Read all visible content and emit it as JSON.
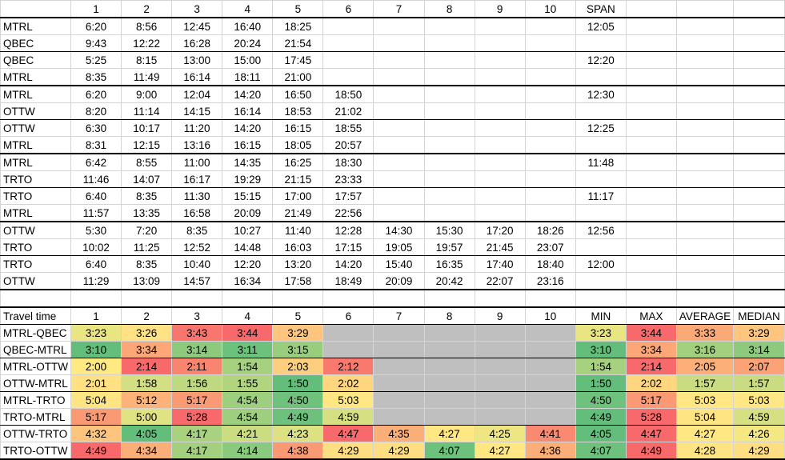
{
  "header": [
    "",
    "1",
    "2",
    "3",
    "4",
    "5",
    "6",
    "7",
    "8",
    "9",
    "10",
    "SPAN",
    "",
    "",
    ""
  ],
  "schedule": [
    {
      "span": "12:05",
      "rows": [
        {
          "station": "MTRL",
          "times": [
            "6:20",
            "8:56",
            "12:45",
            "16:40",
            "18:25"
          ]
        },
        {
          "station": "QBEC",
          "times": [
            "9:43",
            "12:22",
            "16:28",
            "20:24",
            "21:54"
          ]
        }
      ]
    },
    {
      "span": "12:20",
      "rows": [
        {
          "station": "QBEC",
          "times": [
            "5:25",
            "8:15",
            "13:00",
            "15:00",
            "17:45"
          ]
        },
        {
          "station": "MTRL",
          "times": [
            "8:35",
            "11:49",
            "16:14",
            "18:11",
            "21:00"
          ]
        }
      ]
    },
    {
      "span": "12:30",
      "rows": [
        {
          "station": "MTRL",
          "times": [
            "6:20",
            "9:00",
            "12:04",
            "14:20",
            "16:50",
            "18:50"
          ]
        },
        {
          "station": "OTTW",
          "times": [
            "8:20",
            "11:14",
            "14:15",
            "16:14",
            "18:53",
            "21:02"
          ]
        }
      ]
    },
    {
      "span": "12:25",
      "rows": [
        {
          "station": "OTTW",
          "times": [
            "6:30",
            "10:17",
            "11:20",
            "14:20",
            "16:15",
            "18:55"
          ]
        },
        {
          "station": "MTRL",
          "times": [
            "8:31",
            "12:15",
            "13:16",
            "16:15",
            "18:05",
            "20:57"
          ]
        }
      ]
    },
    {
      "span": "11:48",
      "rows": [
        {
          "station": "MTRL",
          "times": [
            "6:42",
            "8:55",
            "11:00",
            "14:35",
            "16:25",
            "18:30"
          ]
        },
        {
          "station": "TRTO",
          "times": [
            "11:46",
            "14:07",
            "16:17",
            "19:29",
            "21:15",
            "23:33"
          ]
        }
      ]
    },
    {
      "span": "11:17",
      "rows": [
        {
          "station": "TRTO",
          "times": [
            "6:40",
            "8:35",
            "11:30",
            "15:15",
            "17:00",
            "17:57"
          ]
        },
        {
          "station": "MTRL",
          "times": [
            "11:57",
            "13:35",
            "16:58",
            "20:09",
            "21:49",
            "22:56"
          ]
        }
      ]
    },
    {
      "span": "12:56",
      "rows": [
        {
          "station": "OTTW",
          "times": [
            "5:30",
            "7:20",
            "8:35",
            "10:27",
            "11:40",
            "12:28",
            "14:30",
            "15:30",
            "17:20",
            "18:26"
          ]
        },
        {
          "station": "TRTO",
          "times": [
            "10:02",
            "11:25",
            "12:52",
            "14:48",
            "16:03",
            "17:15",
            "19:05",
            "19:57",
            "21:45",
            "23:07"
          ]
        }
      ]
    },
    {
      "span": "12:00",
      "rows": [
        {
          "station": "TRTO",
          "times": [
            "6:40",
            "8:35",
            "10:40",
            "12:20",
            "13:20",
            "14:20",
            "15:40",
            "16:35",
            "17:40",
            "18:40"
          ]
        },
        {
          "station": "OTTW",
          "times": [
            "11:29",
            "13:09",
            "14:57",
            "16:34",
            "17:58",
            "18:49",
            "20:09",
            "20:42",
            "22:07",
            "23:16"
          ]
        }
      ]
    }
  ],
  "travel": {
    "header": [
      "Travel time",
      "1",
      "2",
      "3",
      "4",
      "5",
      "6",
      "7",
      "8",
      "9",
      "10",
      "MIN",
      "MAX",
      "AVERAGE",
      "MEDIAN"
    ],
    "no_data_color": "#BFBFBF",
    "rows": [
      {
        "route": "MTRL-QBEC",
        "cells": [
          [
            "3:23",
            "#E9E583"
          ],
          [
            "3:26",
            "#FEE283"
          ],
          [
            "3:43",
            "#F8766D"
          ],
          [
            "3:44",
            "#F8696B"
          ],
          [
            "3:29",
            "#FDC57D"
          ],
          null,
          null,
          null,
          null,
          null
        ],
        "stats": [
          [
            "3:23",
            "#E9E583"
          ],
          [
            "3:44",
            "#F8696B"
          ],
          [
            "3:33",
            "#FBA977"
          ],
          [
            "3:29",
            "#FDC57D"
          ]
        ]
      },
      {
        "route": "QBEC-MTRL",
        "cells": [
          [
            "3:10",
            "#63BE7B"
          ],
          [
            "3:34",
            "#FBA777"
          ],
          [
            "3:14",
            "#8DCA7E"
          ],
          [
            "3:11",
            "#6CC17C"
          ],
          [
            "3:15",
            "#98CD7E"
          ],
          null,
          null,
          null,
          null,
          null
        ],
        "stats": [
          [
            "3:10",
            "#63BE7B"
          ],
          [
            "3:34",
            "#FBA777"
          ],
          [
            "3:16",
            "#A2D07F"
          ],
          [
            "3:14",
            "#8DCA7E"
          ]
        ]
      },
      {
        "route": "MTRL-OTTW",
        "cells": [
          [
            "2:00",
            "#FEE983"
          ],
          [
            "2:14",
            "#F8696B"
          ],
          [
            "2:11",
            "#F98570"
          ],
          [
            "1:54",
            "#A6D17F"
          ],
          [
            "2:03",
            "#FECE7F"
          ],
          [
            "2:12",
            "#F9796E"
          ],
          null,
          null,
          null,
          null
        ],
        "stats": [
          [
            "1:54",
            "#A6D17F"
          ],
          [
            "2:14",
            "#F8696B"
          ],
          [
            "2:05",
            "#FCAF78"
          ],
          [
            "2:07",
            "#FBA276"
          ]
        ]
      },
      {
        "route": "OTTW-MTRL",
        "cells": [
          [
            "2:01",
            "#FFE083"
          ],
          [
            "1:58",
            "#D3DF82"
          ],
          [
            "1:56",
            "#BFD980"
          ],
          [
            "1:55",
            "#B1D57F"
          ],
          [
            "1:50",
            "#63BE7B"
          ],
          [
            "2:02",
            "#FED680"
          ],
          null,
          null,
          null,
          null
        ],
        "stats": [
          [
            "1:50",
            "#63BE7B"
          ],
          [
            "2:02",
            "#FED680"
          ],
          [
            "1:57",
            "#C9DC81"
          ],
          [
            "1:57",
            "#C9DC81"
          ]
        ]
      },
      {
        "route": "MTRL-TRTO",
        "cells": [
          [
            "5:04",
            "#FFE483"
          ],
          [
            "5:12",
            "#FCB279"
          ],
          [
            "5:17",
            "#FA9A74"
          ],
          [
            "4:54",
            "#9DCF7E"
          ],
          [
            "4:50",
            "#6FC27C"
          ],
          [
            "5:03",
            "#FFE884"
          ],
          null,
          null,
          null,
          null
        ],
        "stats": [
          [
            "4:50",
            "#6FC27C"
          ],
          [
            "5:17",
            "#FA9A74"
          ],
          [
            "5:03",
            "#FFE884"
          ],
          [
            "5:03",
            "#FFE884"
          ]
        ]
      },
      {
        "route": "TRTO-MTRL",
        "cells": [
          [
            "5:17",
            "#FA9A74"
          ],
          [
            "5:00",
            "#E0E383"
          ],
          [
            "5:28",
            "#F8696B"
          ],
          [
            "4:54",
            "#9DCF7E"
          ],
          [
            "4:49",
            "#6DC17C"
          ],
          [
            "4:59",
            "#D6E082"
          ],
          null,
          null,
          null,
          null
        ],
        "stats": [
          [
            "4:49",
            "#63BE7B"
          ],
          [
            "5:28",
            "#F8696B"
          ],
          [
            "5:04",
            "#FFE483"
          ],
          [
            "4:59",
            "#D6E082"
          ]
        ]
      },
      {
        "route": "OTTW-TRTO",
        "cells": [
          [
            "4:32",
            "#FDC47D"
          ],
          [
            "4:05",
            "#63BE7B"
          ],
          [
            "4:17",
            "#A9D27F"
          ],
          [
            "4:21",
            "#CCDD81"
          ],
          [
            "4:23",
            "#DCE182"
          ],
          [
            "4:47",
            "#F8696B"
          ],
          [
            "4:35",
            "#FBAF78"
          ],
          [
            "4:27",
            "#FFE884"
          ],
          [
            "4:25",
            "#EEE683"
          ],
          [
            "4:41",
            "#F98A71"
          ]
        ],
        "stats": [
          [
            "4:05",
            "#63BE7B"
          ],
          [
            "4:47",
            "#F8696B"
          ],
          [
            "4:27",
            "#FFE884"
          ],
          [
            "4:26",
            "#F5E883"
          ]
        ]
      },
      {
        "route": "TRTO-OTTW",
        "cells": [
          [
            "4:49",
            "#F8696B"
          ],
          [
            "4:34",
            "#FBAF78"
          ],
          [
            "4:17",
            "#A2D07F"
          ],
          [
            "4:14",
            "#8AC97E"
          ],
          [
            "4:38",
            "#F99A74"
          ],
          [
            "4:29",
            "#FEDE82"
          ],
          [
            "4:29",
            "#FEDE82"
          ],
          [
            "4:07",
            "#6DC17C"
          ],
          [
            "4:27",
            "#FFE884"
          ],
          [
            "4:36",
            "#FBAE78"
          ]
        ],
        "stats": [
          [
            "4:07",
            "#6DC17C"
          ],
          [
            "4:49",
            "#F8696B"
          ],
          [
            "4:28",
            "#FFE483"
          ],
          [
            "4:29",
            "#FEDE82"
          ]
        ]
      }
    ]
  }
}
